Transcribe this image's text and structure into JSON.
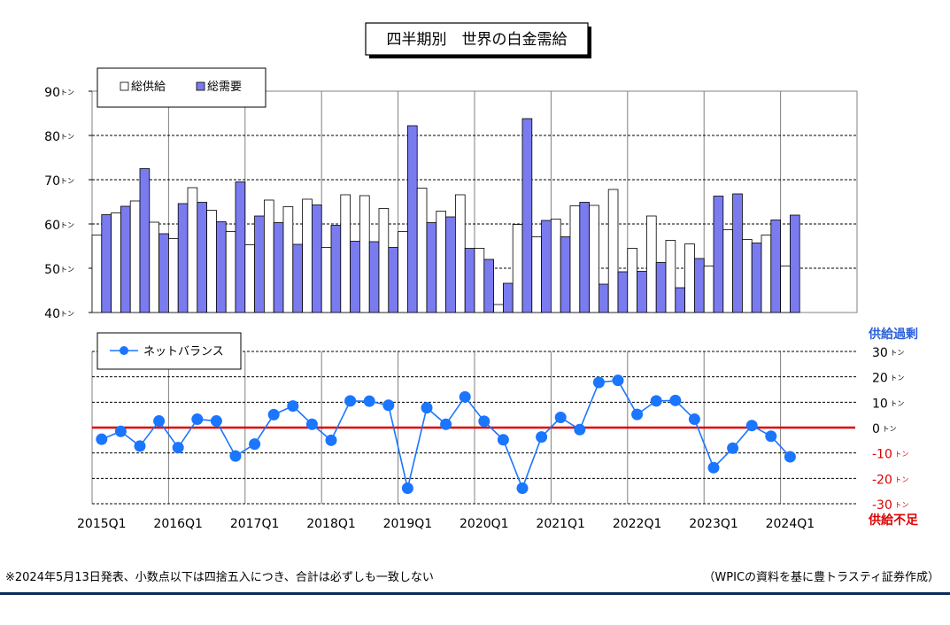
{
  "chart_data": [
    {
      "type": "bar",
      "title": "四半期別　世界の白金需給",
      "categories": [
        "2015Q1",
        "2015Q2",
        "2015Q3",
        "2015Q4",
        "2016Q1",
        "2016Q2",
        "2016Q3",
        "2016Q4",
        "2017Q1",
        "2017Q2",
        "2017Q3",
        "2017Q4",
        "2018Q1",
        "2018Q2",
        "2018Q3",
        "2018Q4",
        "2019Q1",
        "2019Q2",
        "2019Q3",
        "2019Q4",
        "2020Q1",
        "2020Q2",
        "2020Q3",
        "2020Q4",
        "2021Q1",
        "2021Q2",
        "2021Q3",
        "2021Q4",
        "2022Q1",
        "2022Q2",
        "2022Q3",
        "2022Q4",
        "2023Q1",
        "2023Q2",
        "2023Q3",
        "2023Q4",
        "2024Q1"
      ],
      "x_tick_labels": [
        "2015Q1",
        "2016Q1",
        "2017Q1",
        "2018Q1",
        "2019Q1",
        "2020Q1",
        "2021Q1",
        "2022Q1",
        "2023Q1",
        "2024Q1"
      ],
      "y_tick_labels": [
        "40トン",
        "50トン",
        "60トン",
        "70トン",
        "80トン",
        "90トン"
      ],
      "ylim": [
        40,
        90
      ],
      "grid": true,
      "legend": "top-left",
      "series": [
        {
          "name": "総供給",
          "color": "#ffffff",
          "values": [
            57.5,
            62.5,
            65.2,
            60.4,
            56.7,
            68.2,
            63.1,
            58.3,
            55.3,
            65.4,
            63.9,
            65.6,
            54.7,
            66.6,
            66.4,
            63.5,
            58.3,
            68.1,
            62.9,
            66.6,
            54.5,
            41.8,
            59.9,
            57.1,
            61.1,
            64.1,
            64.2,
            67.8,
            54.5,
            61.8,
            56.3,
            55.5,
            50.5,
            58.7,
            56.5,
            57.5,
            50.5
          ]
        },
        {
          "name": "総需要",
          "color": "#7b7bf0",
          "values": [
            62.1,
            64.0,
            72.5,
            57.8,
            64.6,
            64.9,
            60.5,
            69.5,
            61.8,
            60.3,
            55.4,
            64.3,
            59.7,
            56.1,
            56.0,
            54.7,
            82.2,
            60.3,
            61.6,
            54.5,
            52.0,
            46.6,
            83.8,
            60.8,
            57.1,
            64.9,
            46.4,
            49.2,
            49.3,
            51.3,
            45.6,
            52.2,
            66.3,
            66.8,
            55.7,
            60.9,
            62.0
          ]
        }
      ]
    },
    {
      "type": "line",
      "categories_ref": "same as bar chart",
      "x_tick_labels": [
        "2015Q1",
        "2016Q1",
        "2017Q1",
        "2018Q1",
        "2019Q1",
        "2020Q1",
        "2021Q1",
        "2022Q1",
        "2023Q1",
        "2024Q1"
      ],
      "y_tick_labels": [
        "30トン",
        "20トン",
        "10トン",
        "0トン",
        "-10トン",
        "-20トン",
        "-30トン"
      ],
      "y_top_label": "供給過剰",
      "y_bottom_label": "供給不足",
      "ylim": [
        -30,
        30
      ],
      "zero_line_color": "#dd0000",
      "legend": "top-left",
      "series": [
        {
          "name": "ネットバランス",
          "color": "#1a75ff",
          "values": [
            -4.6,
            -1.5,
            -7.3,
            2.6,
            -7.9,
            3.3,
            2.6,
            -11.2,
            -6.5,
            5.1,
            8.5,
            1.3,
            -5.0,
            10.5,
            10.4,
            8.8,
            -23.9,
            7.8,
            1.3,
            12.1,
            2.5,
            -4.8,
            -23.9,
            -3.7,
            4.0,
            -0.8,
            17.8,
            18.6,
            5.2,
            10.5,
            10.7,
            3.3,
            -15.8,
            -8.1,
            0.8,
            -3.4,
            -11.5
          ]
        }
      ]
    }
  ],
  "footnote_left": "※2024年5月13日発表、小数点以下は四捨五入につき、合計は必ずしも一致しない",
  "footnote_right": "（WPICの資料を基に豊トラスティ証券作成）"
}
